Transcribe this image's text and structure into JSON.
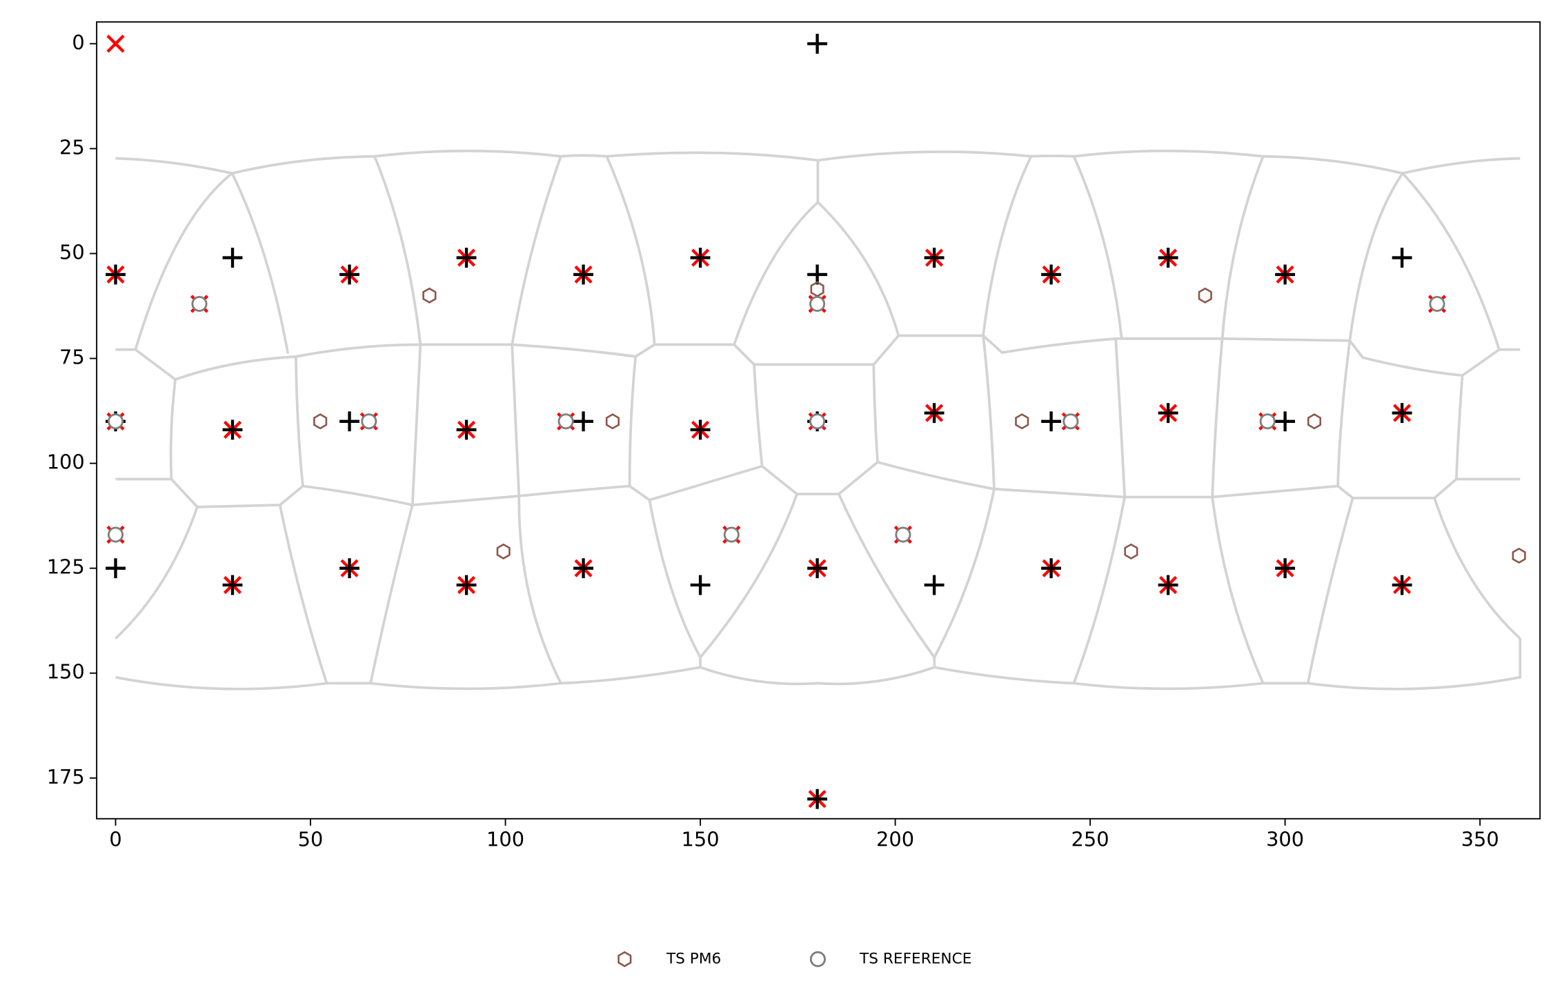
{
  "chart_data": {
    "type": "scatter",
    "xlim": [
      -4.85,
      365.4
    ],
    "ylim": [
      184.7,
      -5.2
    ],
    "xticks": [
      0,
      50,
      100,
      150,
      200,
      250,
      300,
      350
    ],
    "yticks": [
      0,
      25,
      50,
      75,
      100,
      125,
      150,
      175
    ],
    "legend": "bottom",
    "series": [
      {
        "marker": "x",
        "color": "#ff0000",
        "x": [
          0,
          0,
          60,
          90,
          120,
          150,
          210,
          240,
          270,
          300,
          21.5,
          180,
          339,
          0,
          30,
          65,
          90,
          115.5,
          150,
          180,
          210,
          245,
          270,
          295.5,
          330,
          0,
          30,
          60,
          90,
          120,
          158,
          180,
          202,
          240,
          270,
          300,
          330,
          180
        ],
        "values": [
          0,
          55,
          55,
          51,
          55,
          51,
          51,
          55,
          51,
          55,
          62,
          62,
          62,
          90,
          92,
          90,
          92,
          90,
          92,
          90,
          88,
          90,
          88,
          90,
          88,
          117,
          129,
          125,
          129,
          125,
          117,
          125,
          117,
          125,
          129,
          125,
          129,
          180
        ]
      },
      {
        "marker": "plus",
        "color": "#000000",
        "x": [
          180,
          0,
          30,
          60,
          90,
          120,
          150,
          180,
          210,
          240,
          270,
          300,
          330,
          0,
          30,
          60,
          90,
          120,
          150,
          180,
          210,
          240,
          270,
          300,
          330,
          0,
          30,
          60,
          90,
          120,
          150,
          180,
          210,
          240,
          270,
          300,
          330,
          180
        ],
        "values": [
          0,
          55,
          51,
          55,
          51,
          55,
          51,
          55,
          51,
          55,
          51,
          55,
          51,
          90,
          92,
          90,
          92,
          90,
          92,
          90,
          88,
          90,
          88,
          90,
          88,
          125,
          129,
          125,
          129,
          125,
          129,
          125,
          129,
          125,
          129,
          125,
          129,
          180
        ]
      },
      {
        "name": "TS PM6",
        "marker": "hexagon",
        "color": "#8c564b",
        "x": [
          80.5,
          180,
          279.5,
          52.5,
          127.5,
          232.5,
          307.5,
          99.5,
          260.5,
          360
        ],
        "values": [
          60,
          58.5,
          60,
          90,
          90,
          90,
          90,
          121,
          121,
          122
        ]
      },
      {
        "name": "TS REFERENCE",
        "marker": "circle",
        "color": "#7f7f7f",
        "x": [
          21.5,
          180,
          339,
          0,
          65,
          115.5,
          180,
          245,
          295.5,
          0,
          158,
          202
        ],
        "values": [
          62,
          62,
          62,
          90,
          90,
          90,
          90,
          90,
          90,
          117,
          117,
          117
        ]
      }
    ]
  }
}
